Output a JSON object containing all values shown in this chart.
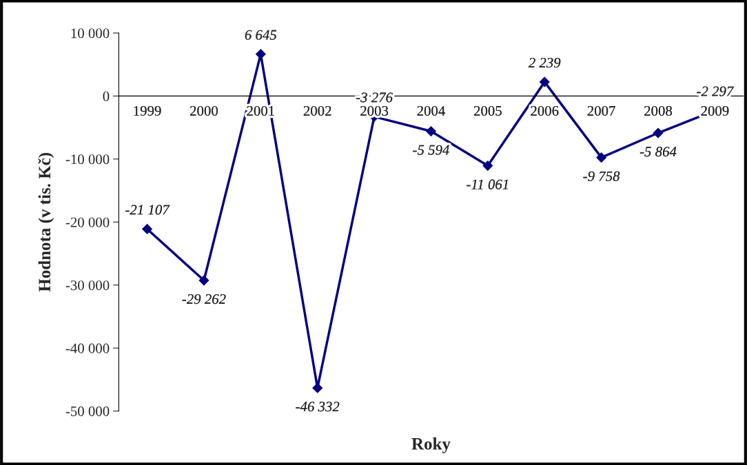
{
  "chart_data": {
    "type": "line",
    "xlabel": "Roky",
    "ylabel": "Hodnota (v tis. Kč)",
    "categories": [
      "1999",
      "2000",
      "2001",
      "2002",
      "2003",
      "2004",
      "2005",
      "2006",
      "2007",
      "2008",
      "2009"
    ],
    "series": [
      {
        "color": "#000080",
        "values": [
          -21107,
          -29262,
          6645,
          -46332,
          -3276,
          -5594,
          -11061,
          2239,
          -9758,
          -5864,
          -2297
        ]
      }
    ],
    "ylim": [
      -50000,
      10000
    ],
    "yticks": [
      {
        "value": -50000,
        "label": "-50 000"
      },
      {
        "value": -40000,
        "label": "-40 000"
      },
      {
        "value": -30000,
        "label": "-30 000"
      },
      {
        "value": -20000,
        "label": "-20 000"
      },
      {
        "value": -10000,
        "label": "-10 000"
      },
      0,
      {
        "value": 10000,
        "label": "10 000"
      }
    ],
    "marker": "diamond",
    "line_style": "solid",
    "grid": false,
    "legend": false,
    "data_labels": true
  }
}
